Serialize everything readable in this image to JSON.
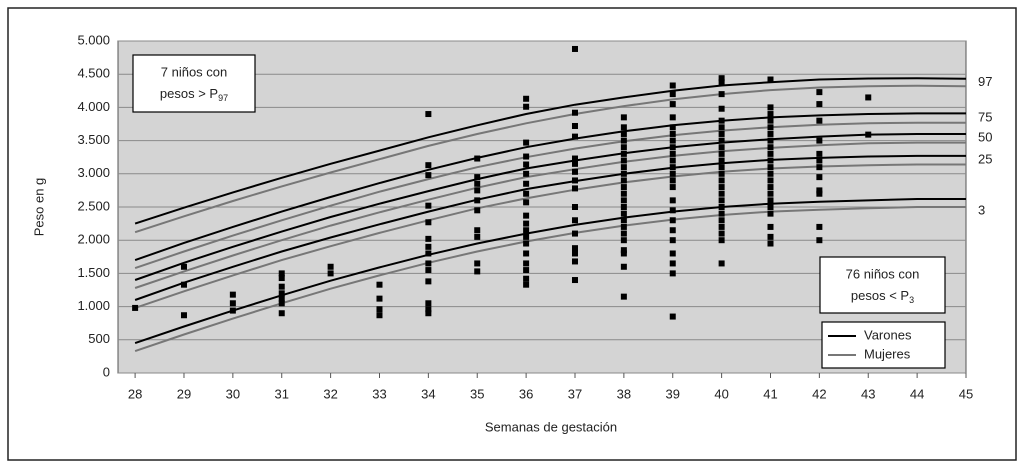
{
  "chart_data": {
    "type": "percentile-scatter",
    "x_label": "Semanas de gestación",
    "y_label": "Peso en g",
    "xlim": [
      27.65,
      45
    ],
    "xticks": [
      28,
      29,
      30,
      31,
      32,
      33,
      34,
      35,
      36,
      37,
      38,
      39,
      40,
      41,
      42,
      43,
      44,
      45
    ],
    "ylim": [
      0,
      5000
    ],
    "yticks": [
      0,
      500,
      {
        "value": 1000,
        "label": "1.000"
      },
      {
        "value": 1500,
        "label": "1.500"
      },
      {
        "value": 2000,
        "label": "2.000"
      },
      {
        "value": 2500,
        "label": "2.500"
      },
      {
        "value": 3000,
        "label": "3.000"
      },
      {
        "value": 3500,
        "label": "3.500"
      },
      {
        "value": 4000,
        "label": "4.000"
      },
      {
        "value": 4500,
        "label": "4.500"
      },
      {
        "value": 5000,
        "label": "5.000"
      }
    ],
    "grid": true,
    "plot_color": "#d4d4d4",
    "curve_x": [
      28,
      29,
      30,
      31,
      32,
      33,
      34,
      35,
      36,
      37,
      38,
      39,
      40,
      41,
      42,
      43,
      44,
      45
    ],
    "percentiles": [
      97,
      75,
      50,
      25,
      3
    ],
    "series": [
      {
        "name": "Varones",
        "color": "#000000",
        "values": [
          [
            2250,
            2490,
            2720,
            2940,
            3150,
            3350,
            3550,
            3730,
            3900,
            4040,
            4150,
            4250,
            4330,
            4380,
            4420,
            4435,
            4440,
            4430
          ],
          [
            1700,
            1960,
            2200,
            2430,
            2650,
            2860,
            3060,
            3240,
            3400,
            3530,
            3640,
            3730,
            3800,
            3850,
            3880,
            3900,
            3910,
            3910
          ],
          [
            1400,
            1660,
            1900,
            2130,
            2350,
            2550,
            2740,
            2920,
            3080,
            3200,
            3310,
            3400,
            3470,
            3520,
            3560,
            3590,
            3600,
            3600
          ],
          [
            1100,
            1360,
            1600,
            1830,
            2040,
            2240,
            2430,
            2610,
            2770,
            2890,
            3000,
            3090,
            3160,
            3210,
            3240,
            3260,
            3270,
            3270
          ],
          [
            450,
            700,
            940,
            1170,
            1390,
            1590,
            1780,
            1950,
            2100,
            2230,
            2340,
            2430,
            2500,
            2550,
            2580,
            2600,
            2620,
            2620
          ]
        ]
      },
      {
        "name": "Mujeres",
        "color": "#777777",
        "values": [
          [
            2120,
            2360,
            2590,
            2810,
            3020,
            3220,
            3420,
            3600,
            3760,
            3900,
            4020,
            4120,
            4200,
            4260,
            4300,
            4320,
            4325,
            4320
          ],
          [
            1580,
            1830,
            2070,
            2300,
            2520,
            2730,
            2920,
            3100,
            3250,
            3380,
            3490,
            3580,
            3650,
            3700,
            3740,
            3760,
            3770,
            3770
          ],
          [
            1280,
            1530,
            1770,
            2000,
            2220,
            2420,
            2610,
            2790,
            2950,
            3070,
            3180,
            3270,
            3340,
            3390,
            3430,
            3460,
            3470,
            3470
          ],
          [
            980,
            1230,
            1470,
            1700,
            1910,
            2110,
            2300,
            2480,
            2630,
            2760,
            2870,
            2960,
            3030,
            3080,
            3110,
            3130,
            3140,
            3140
          ],
          [
            330,
            580,
            820,
            1050,
            1270,
            1470,
            1660,
            1830,
            1980,
            2110,
            2220,
            2310,
            2380,
            2430,
            2460,
            2480,
            2500,
            2500
          ]
        ]
      }
    ],
    "point_color": "#000000",
    "points": [
      {
        "x": 28,
        "y": [
          980
        ]
      },
      {
        "x": 29,
        "y": [
          1600,
          1330,
          870
        ]
      },
      {
        "x": 30,
        "y": [
          1180,
          1050,
          940
        ]
      },
      {
        "x": 31,
        "y": [
          1500,
          1430,
          1300,
          1200,
          1120,
          1050,
          900
        ]
      },
      {
        "x": 32,
        "y": [
          1600,
          1500
        ]
      },
      {
        "x": 33,
        "y": [
          1330,
          1120,
          960,
          870
        ]
      },
      {
        "x": 34,
        "y": [
          3900,
          3130,
          2980,
          2520,
          2270,
          2020,
          1900,
          1800,
          1650,
          1550,
          1380,
          1050,
          960,
          900
        ]
      },
      {
        "x": 35,
        "y": [
          3230,
          2950,
          2850,
          2750,
          2600,
          2450,
          2150,
          2050,
          1650,
          1530
        ]
      },
      {
        "x": 36,
        "y": [
          4130,
          4010,
          3470,
          3260,
          3140,
          3000,
          2850,
          2700,
          2570,
          2370,
          2250,
          2150,
          2050,
          1950,
          1800,
          1650,
          1550,
          1420,
          1330
        ]
      },
      {
        "x": 37,
        "y": [
          4880,
          3920,
          3720,
          3560,
          3230,
          3150,
          3030,
          2900,
          2780,
          2500,
          2300,
          2100,
          1880,
          1800,
          1680,
          1400
        ]
      },
      {
        "x": 38,
        "y": [
          3850,
          3700,
          3600,
          3500,
          3400,
          3300,
          3200,
          3100,
          3000,
          2900,
          2800,
          2700,
          2600,
          2500,
          2400,
          2300,
          2200,
          2100,
          2000,
          1850,
          1800,
          1600,
          1150
        ]
      },
      {
        "x": 39,
        "y": [
          4330,
          4200,
          4050,
          3850,
          3700,
          3600,
          3500,
          3400,
          3300,
          3200,
          3100,
          3000,
          2900,
          2800,
          2600,
          2450,
          2300,
          2150,
          2000,
          1800,
          1650,
          1500,
          850
        ]
      },
      {
        "x": 40,
        "y": [
          4440,
          4380,
          4200,
          3980,
          3800,
          3700,
          3600,
          3500,
          3400,
          3300,
          3200,
          3100,
          3000,
          2900,
          2800,
          2700,
          2600,
          2500,
          2400,
          2300,
          2200,
          2100,
          2000,
          1650
        ]
      },
      {
        "x": 41,
        "y": [
          4420,
          4000,
          3900,
          3800,
          3700,
          3600,
          3500,
          3400,
          3300,
          3200,
          3100,
          3000,
          2900,
          2800,
          2700,
          2600,
          2500,
          2400,
          2200,
          2050,
          1950
        ]
      },
      {
        "x": 42,
        "y": [
          4230,
          4050,
          3800,
          3500,
          3300,
          3200,
          3100,
          2950,
          2750,
          2700,
          2200,
          2000
        ]
      },
      {
        "x": 43,
        "y": [
          4150,
          3590
        ]
      }
    ],
    "annotations": [
      {
        "line1": "7 niños con",
        "line2": "pesos > P",
        "sub": "97"
      },
      {
        "line1": "76 niños con",
        "line2": "pesos < P",
        "sub": "3"
      }
    ]
  }
}
